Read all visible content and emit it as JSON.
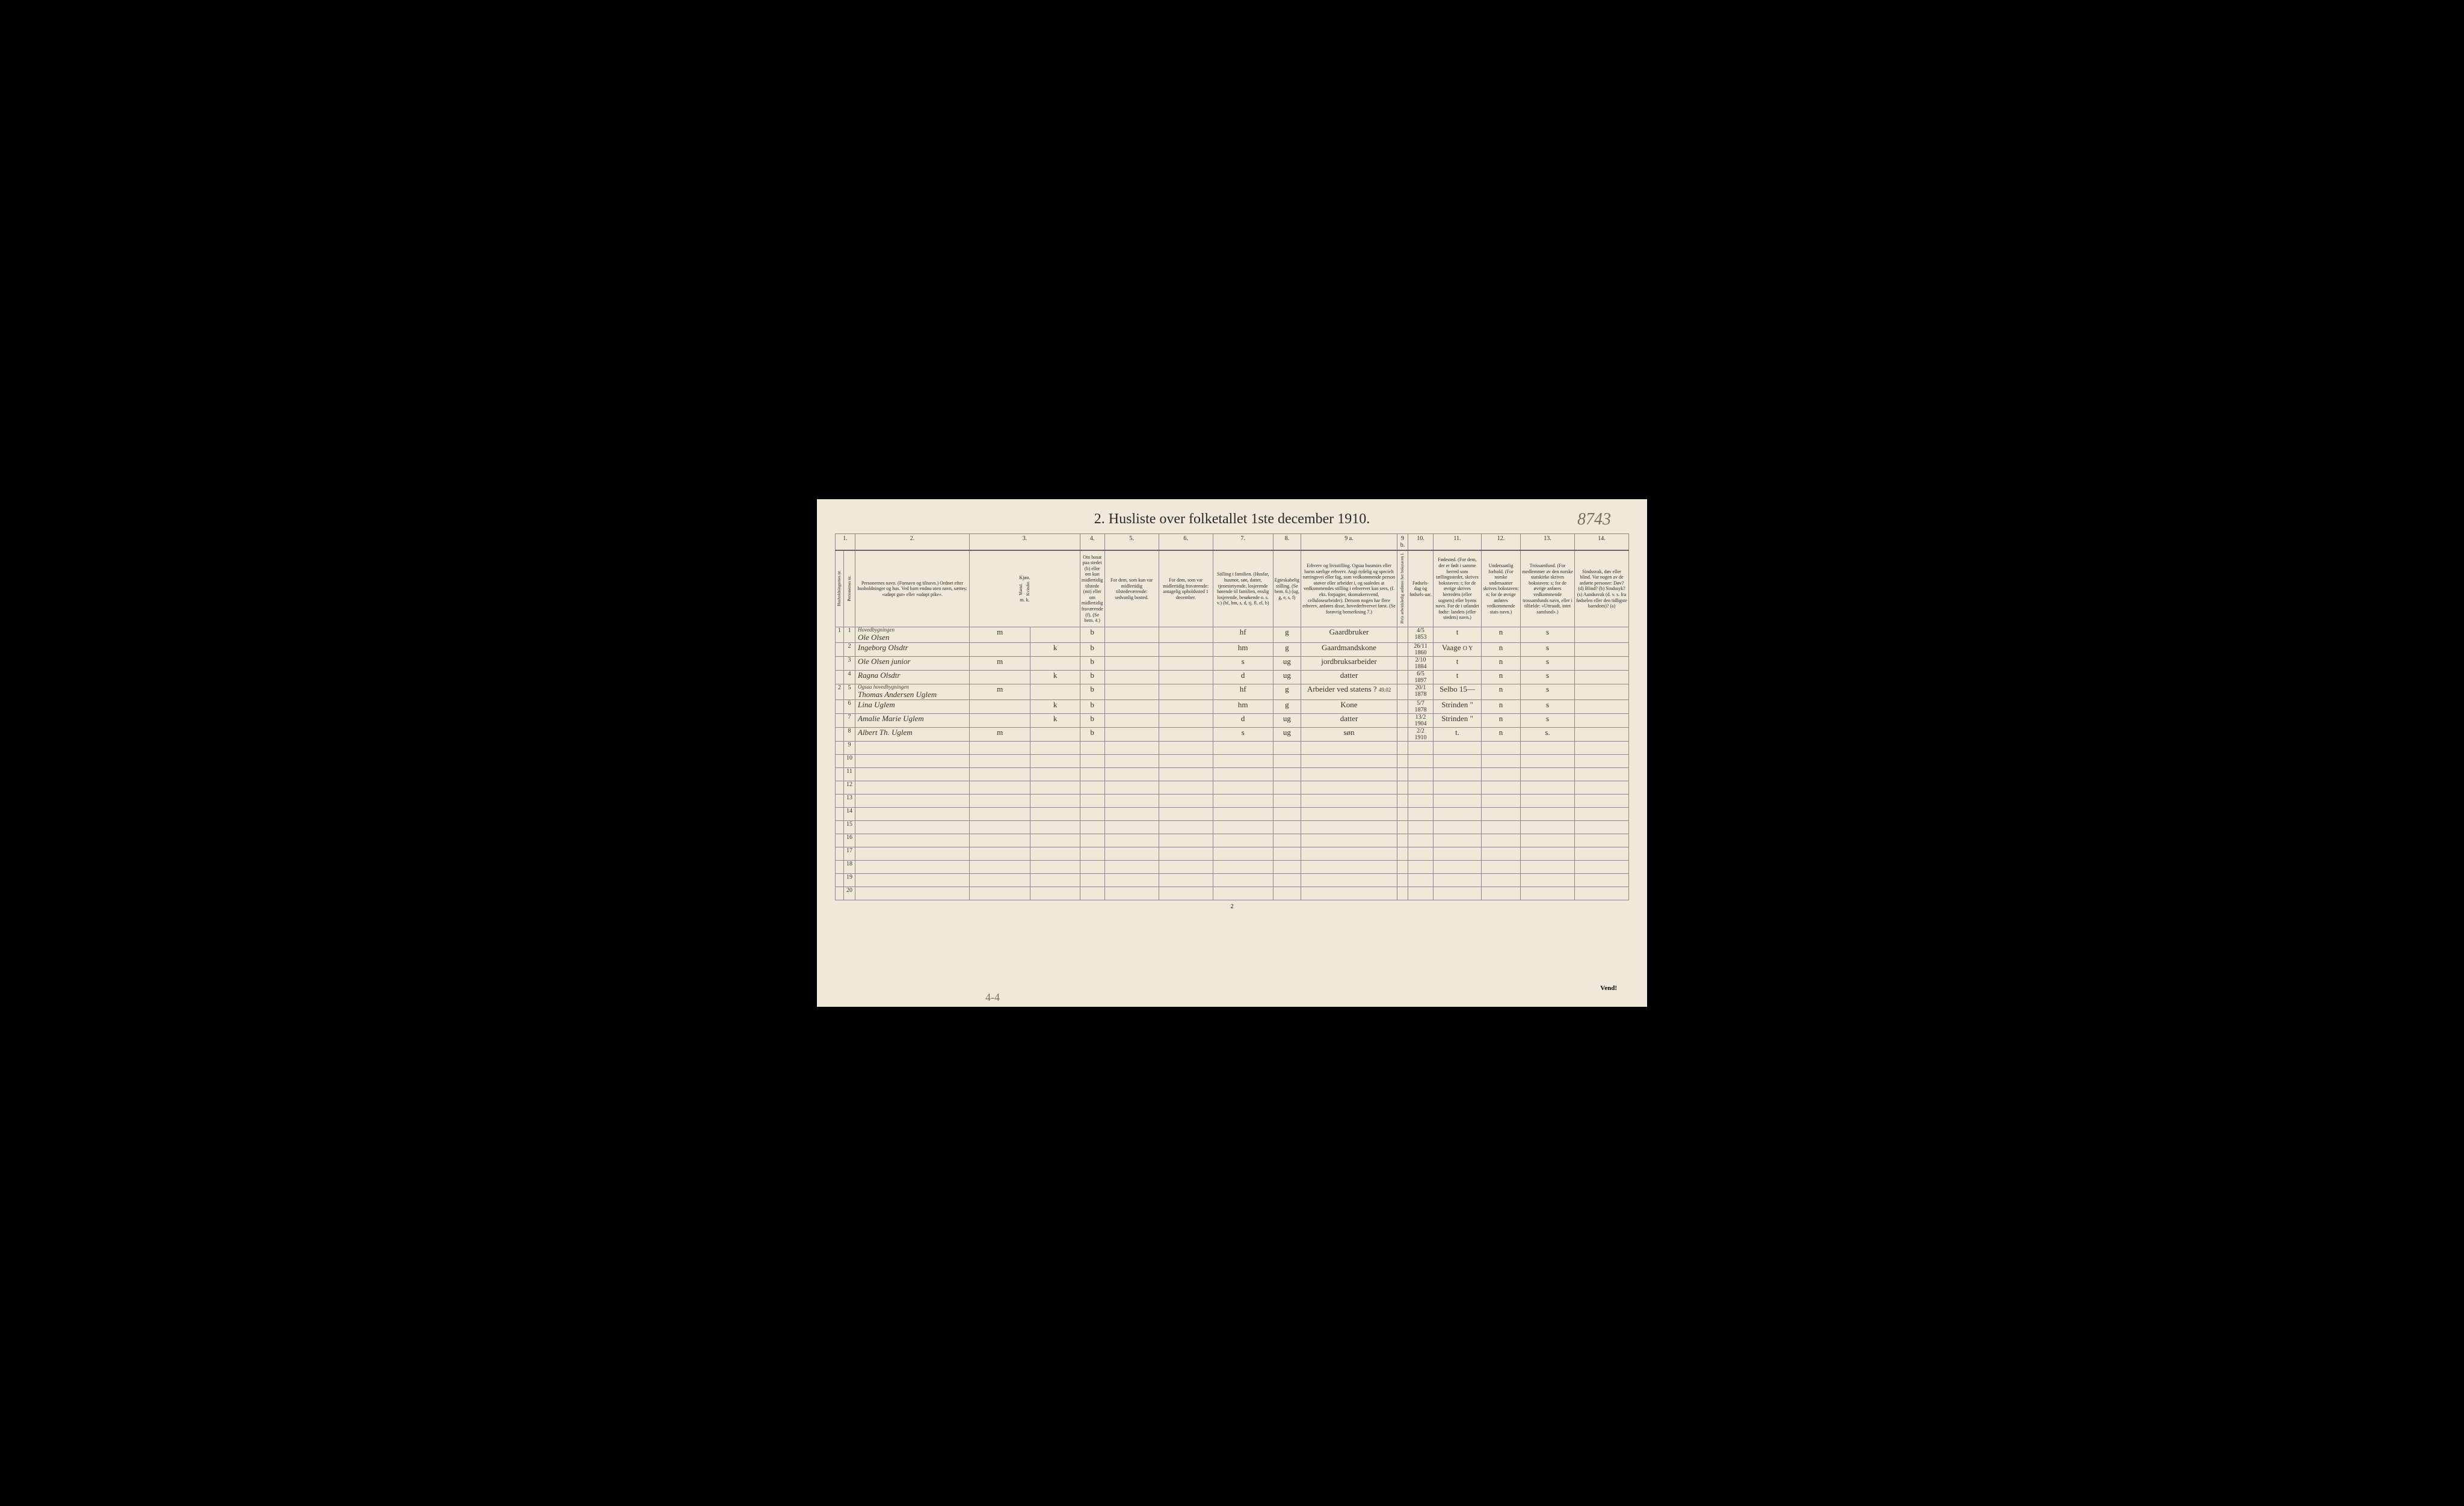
{
  "title": "2.  Husliste over folketallet 1ste december 1910.",
  "handwritten_page_number": "8743",
  "bottom_handwritten": "4-4",
  "footer_page": "2",
  "vend_text": "Vend!",
  "column_numbers": [
    "1.",
    "2.",
    "3.",
    "4.",
    "5.",
    "6.",
    "7.",
    "8.",
    "9 a.",
    "9 b.",
    "10.",
    "11.",
    "12.",
    "13.",
    "14."
  ],
  "headers": {
    "col1a": "Husholdningernes nr.",
    "col1b": "Personernes nr.",
    "col2": "Personernes navn.\n(Fornavn og tilnavn.)\nOrdnet efter husholdninger og hus.\nVed barn endnu uten navn, sættes: «udøpt gut» eller «udøpt pike».",
    "col3": "Kjøn.",
    "col3a": "Mænd.",
    "col3b": "Kvinder.",
    "col3_mk": "m.  k.",
    "col4": "Om bosat paa stedet (b) eller om kun midlertidig tilstede (mt) eller om midlertidig fraværende (f).\n(Se bem. 4.)",
    "col5": "For dem, som kun var midlertidig tilstedeværende:\nsedvanlig bosted.",
    "col6": "For dem, som var midlertidig fraværende:\nantagelig opholdssted 1 december.",
    "col7": "Stilling i familien.\n(Husfar, husmor, søn, datter, tjenestetyende, losjerende hørende til familien, enslig losjerende, besøkende o. s. v.)\n(hf, hm, s, d, tj, fl, el, b)",
    "col8": "Egteskabelig stilling.\n(Se bem. 6.)\n(ug, g, e, s, f)",
    "col9a": "Erhverv og livsstilling.\nOgsaa husmors eller barns særlige erhverv. Angi tydelig og specielt næringsvei eller fag, som vedkommende person utøver eller arbeider i, og saaledes at vedkommendes stilling i erhvervet kan sees, (f. eks. forpagter, skomakersvend, cellulosearbeider). Dersom nogen har flere erhverv, anføres disse, hovederhvervet først.\n(Se forøvrig bemerkning 7.)",
    "col9b": "Hvis arbeidsledig anføres her bokstaven l.",
    "col10": "Fødsels-dag og fødsels-aar.",
    "col11": "Fødested.\n(For dem, der er født i samme herred som tællingsstedet, skrives bokstaven: t; for de øvrige skrives herredets (eller sognets) eller byens navn. For de i utlandet fødte: landets (eller stedets) navn.)",
    "col12": "Undersaatlig forhold.\n(For norske undersaatter skrives bokstaven: n; for de øvrige anføres vedkommende stats navn.)",
    "col13": "Trossamfund.\n(For medlemmer av den norske statskirke skrives bokstaven: s; for de øvrige anføres vedkommende trossamfunds navn, eller i tilfælde: «Uttraadt, intet samfund».)",
    "col14": "Sindssvak, døv eller blind.\nVar nogen av de anførte personer:\nDøv? (d)\nBlind? (b)\nSindssyk? (s)\nAandssvak (d. v. s. fra fødselen eller den tidligste barndom)? (a)"
  },
  "rows": [
    {
      "hh": "1",
      "pn": "1",
      "annotation": "Hovedbygningen",
      "name": "Ole Olsen",
      "sex_m": "m",
      "sex_k": "",
      "residence": "b",
      "family_pos": "hf",
      "marital": "g",
      "occupation": "Gaardbruker",
      "birth": "4/5 1853",
      "birthplace": "t",
      "nationality": "n",
      "religion": "s"
    },
    {
      "hh": "",
      "pn": "2",
      "name": "Ingeborg Olsdtr",
      "sex_m": "",
      "sex_k": "k",
      "residence": "b",
      "family_pos": "hm",
      "marital": "g",
      "occupation": "Gaardmandskone",
      "birth": "26/11 1860",
      "birthplace": "Vaage",
      "birthplace_extra": "O Y",
      "nationality": "n",
      "religion": "s"
    },
    {
      "hh": "",
      "pn": "3",
      "name": "Ole Olsen   junior",
      "sex_m": "m",
      "sex_k": "",
      "residence": "b",
      "family_pos": "s",
      "marital": "ug",
      "occupation": "jordbruksarbeider",
      "birth": "2/10 1884",
      "birthplace": "t",
      "nationality": "n",
      "religion": "s"
    },
    {
      "hh": "",
      "pn": "4",
      "name": "Ragna Olsdtr",
      "sex_m": "",
      "sex_k": "k",
      "residence": "b",
      "family_pos": "d",
      "marital": "ug",
      "occupation": "datter",
      "birth": "6/5 1897",
      "birthplace": "t",
      "nationality": "n",
      "religion": "s"
    },
    {
      "hh": "2",
      "pn": "5",
      "annotation": "Ogsaa hovedbygningen",
      "name": "Thomas Andersen Uglem",
      "sex_m": "m",
      "sex_k": "",
      "residence": "b",
      "family_pos": "hf",
      "marital": "g",
      "occupation": "Arbeider ved statens ?",
      "occupation_extra": "49.02",
      "birth": "20/1 1878",
      "birthplace": "Selbo 15—",
      "nationality": "n",
      "religion": "s"
    },
    {
      "hh": "",
      "pn": "6",
      "name": "Lina Uglem",
      "sex_m": "",
      "sex_k": "k",
      "residence": "b",
      "family_pos": "hm",
      "marital": "g",
      "occupation": "Kone",
      "birth": "5/7 1878",
      "birthplace": "Strinden \"",
      "nationality": "n",
      "religion": "s"
    },
    {
      "hh": "",
      "pn": "7",
      "name": "Amalie Marie Uglem",
      "sex_m": "",
      "sex_k": "k",
      "residence": "b",
      "family_pos": "d",
      "marital": "ug",
      "occupation": "datter",
      "birth": "13/2 1904",
      "birthplace": "Strinden \"",
      "nationality": "n",
      "religion": "s"
    },
    {
      "hh": "",
      "pn": "8",
      "name": "Albert Th. Uglem",
      "sex_m": "m",
      "sex_k": "",
      "residence": "b",
      "family_pos": "s",
      "marital": "ug",
      "occupation": "søn",
      "birth": "2/2 1910",
      "birthplace": "t.",
      "nationality": "n",
      "religion": "s."
    }
  ],
  "empty_rows": [
    9,
    10,
    11,
    12,
    13,
    14,
    15,
    16,
    17,
    18,
    19,
    20
  ],
  "colors": {
    "page_bg": "#f0e8d8",
    "border": "#888888",
    "header_border": "#666666",
    "text": "#2a2a2a",
    "handwriting": "#3a3028",
    "faded_handwriting": "#7a7060"
  },
  "typography": {
    "title_size_pt": 18,
    "header_size_pt": 6,
    "data_size_pt": 10
  }
}
